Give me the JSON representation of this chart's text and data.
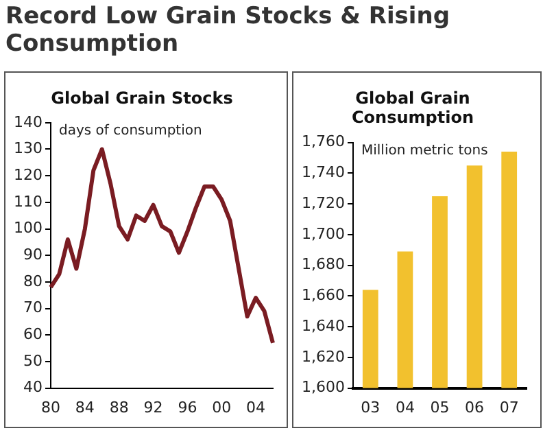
{
  "chart_data": [
    {
      "type": "line",
      "title": "Record Low Grain Stocks & Rising Consumption",
      "subtitle": "Global Grain Stocks",
      "ylabel": "days of consumption",
      "categories": [
        "80",
        null,
        null,
        null,
        "84",
        null,
        null,
        null,
        "88",
        null,
        null,
        null,
        "92",
        null,
        null,
        null,
        "96",
        null,
        null,
        null,
        "00",
        null,
        null,
        null,
        "04",
        null,
        null
      ],
      "values": [
        78,
        83,
        96,
        85,
        100,
        122,
        130,
        117,
        101,
        96,
        105,
        103,
        109,
        101,
        99,
        91,
        99,
        108,
        116,
        116,
        111,
        103,
        85,
        67,
        74,
        69,
        57
      ],
      "color": "#7a1c22",
      "marker": "none",
      "line_style": "solid",
      "ylim": [
        40,
        140
      ],
      "yticks": [
        40,
        50,
        60,
        70,
        80,
        90,
        100,
        110,
        120,
        130,
        140
      ],
      "grid": false,
      "legend": false
    },
    {
      "type": "bar",
      "title": "Global Grain Consumption",
      "ylabel": "Million metric tons",
      "categories": [
        "03",
        "04",
        "05",
        "06",
        "07"
      ],
      "values": [
        1664,
        1689,
        1725,
        1745,
        1754
      ],
      "color": "#f2c12e",
      "ylim": [
        1600,
        1760
      ],
      "yticks": [
        {
          "value": 1600,
          "label": "1,600"
        },
        {
          "value": 1620,
          "label": "1,620"
        },
        {
          "value": 1640,
          "label": "1,640"
        },
        {
          "value": 1660,
          "label": "1,660"
        },
        {
          "value": 1680,
          "label": "1,680"
        },
        {
          "value": 1700,
          "label": "1,700"
        },
        {
          "value": 1720,
          "label": "1,720"
        },
        {
          "value": 1740,
          "label": "1,740"
        },
        {
          "value": 1760,
          "label": "1,760"
        }
      ],
      "grid": false,
      "legend": false
    }
  ]
}
